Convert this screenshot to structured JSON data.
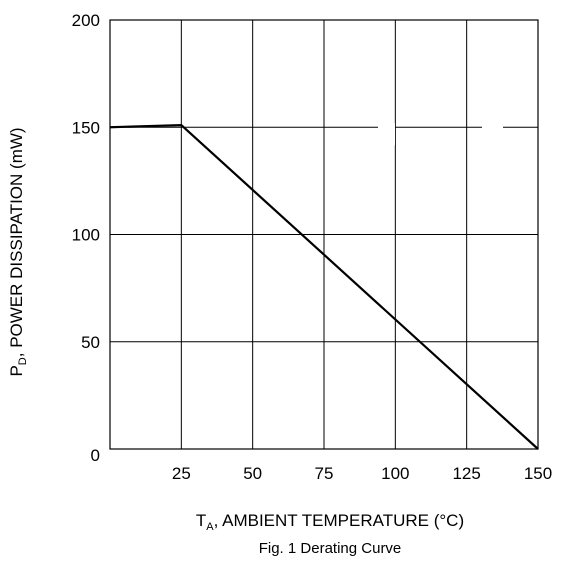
{
  "chart_data": {
    "type": "line",
    "x_tick_labels": [
      "25",
      "50",
      "75",
      "100",
      "125",
      "150"
    ],
    "y_tick_labels": [
      "0",
      "50",
      "100",
      "150",
      "200"
    ],
    "xlim": [
      0,
      150
    ],
    "ylim": [
      0,
      200
    ],
    "x_gridlines": [
      25,
      50,
      75,
      100,
      125
    ],
    "y_gridlines": [
      50,
      100,
      150
    ],
    "grid": true,
    "series": [
      {
        "x": [
          0,
          25,
          150
        ],
        "y": [
          150,
          151,
          0
        ]
      }
    ],
    "ylabel_main": "P",
    "ylabel_sub": "D",
    "ylabel_rest": ", POWER DISSIPATION (mW)",
    "xlabel_main": "T",
    "xlabel_sub": "A",
    "xlabel_rest": ", AMBIENT TEMPERATURE (°C)",
    "caption": "Fig. 1  Derating Curve"
  }
}
